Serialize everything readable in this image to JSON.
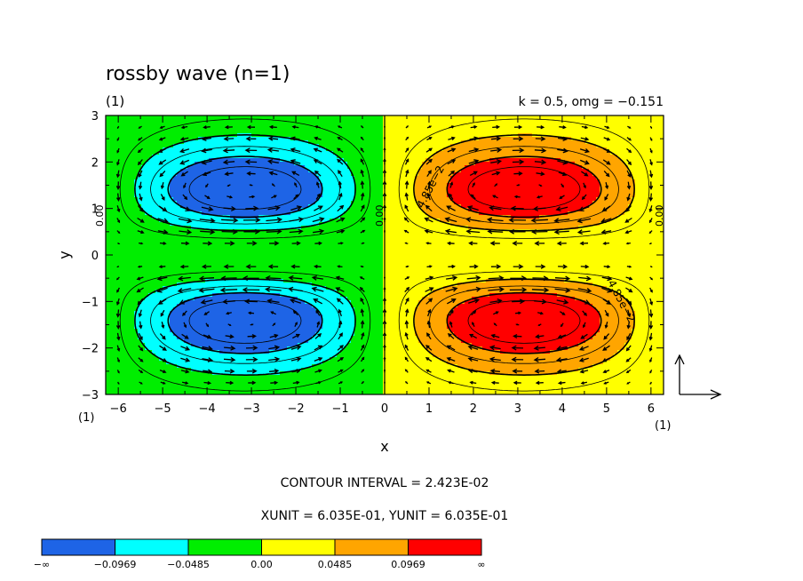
{
  "title": "rossby wave (n=1)",
  "subtitle_left": "(1)",
  "subtitle_right": "k = 0.5, omg = −0.151",
  "x_label": "x",
  "y_label": "y",
  "x_unit_left": "(1)",
  "x_unit_right": "(1)",
  "contour_interval_text": "CONTOUR INTERVAL = 2.423E-02",
  "unit_text": "XUNIT = 6.035E-01, YUNIT = 6.035E-01",
  "contour_labels": [
    "4.85e−2",
    "4.85e−2"
  ],
  "side_labels": [
    "0.00",
    "0.00",
    "0.00"
  ],
  "chart_data": {
    "type": "heatmap",
    "title": "rossby wave (n=1)",
    "xlabel": "x",
    "ylabel": "y",
    "xlim": [
      -6.283,
      6.283
    ],
    "ylim": [
      -3,
      3
    ],
    "x_ticks": [
      -6,
      -5,
      -4,
      -3,
      -2,
      -1,
      0,
      1,
      2,
      3,
      4,
      5,
      6
    ],
    "y_ticks": [
      -3,
      -2,
      -1,
      0,
      1,
      2,
      3
    ],
    "x_tick_labels": [
      "−6",
      "−5",
      "−4",
      "−3",
      "−2",
      "−1",
      "0",
      "1",
      "2",
      "3",
      "4",
      "5",
      "6"
    ],
    "y_tick_labels": [
      "−3",
      "−2",
      "−1",
      "0",
      "1",
      "2",
      "3"
    ],
    "parameters": {
      "k": 0.5,
      "omg": -0.151
    },
    "contour_interval": 0.02423,
    "xunit": 0.6035,
    "yunit": 0.6035,
    "extrema": [
      {
        "x": -3.14,
        "y": 1.15,
        "sign": "min"
      },
      {
        "x": -3.14,
        "y": -1.15,
        "sign": "min"
      },
      {
        "x": 3.14,
        "y": 1.15,
        "sign": "max"
      },
      {
        "x": 3.14,
        "y": -1.15,
        "sign": "max"
      }
    ],
    "color_levels": [
      {
        "label": "−∞",
        "color": "#1e64e6"
      },
      {
        "label": "−0.0969",
        "color": "#00ffff"
      },
      {
        "label": "−0.0485",
        "color": "#00ee00"
      },
      {
        "label": "0.00",
        "color": "#ffff00"
      },
      {
        "label": "0.0485",
        "color": "#ffa500"
      },
      {
        "label": "0.0969",
        "color": "#ff0000"
      },
      {
        "label": "∞",
        "color": null
      }
    ],
    "colorbar_tick_labels": [
      "−∞",
      "−0.0969",
      "−0.0485",
      "0.00",
      "0.0485",
      "0.0969",
      "∞"
    ],
    "level_thresholds": [
      -0.0969,
      -0.0485,
      0.0,
      0.0485,
      0.0969
    ],
    "vector_field": "geostrophic wind arrows"
  }
}
